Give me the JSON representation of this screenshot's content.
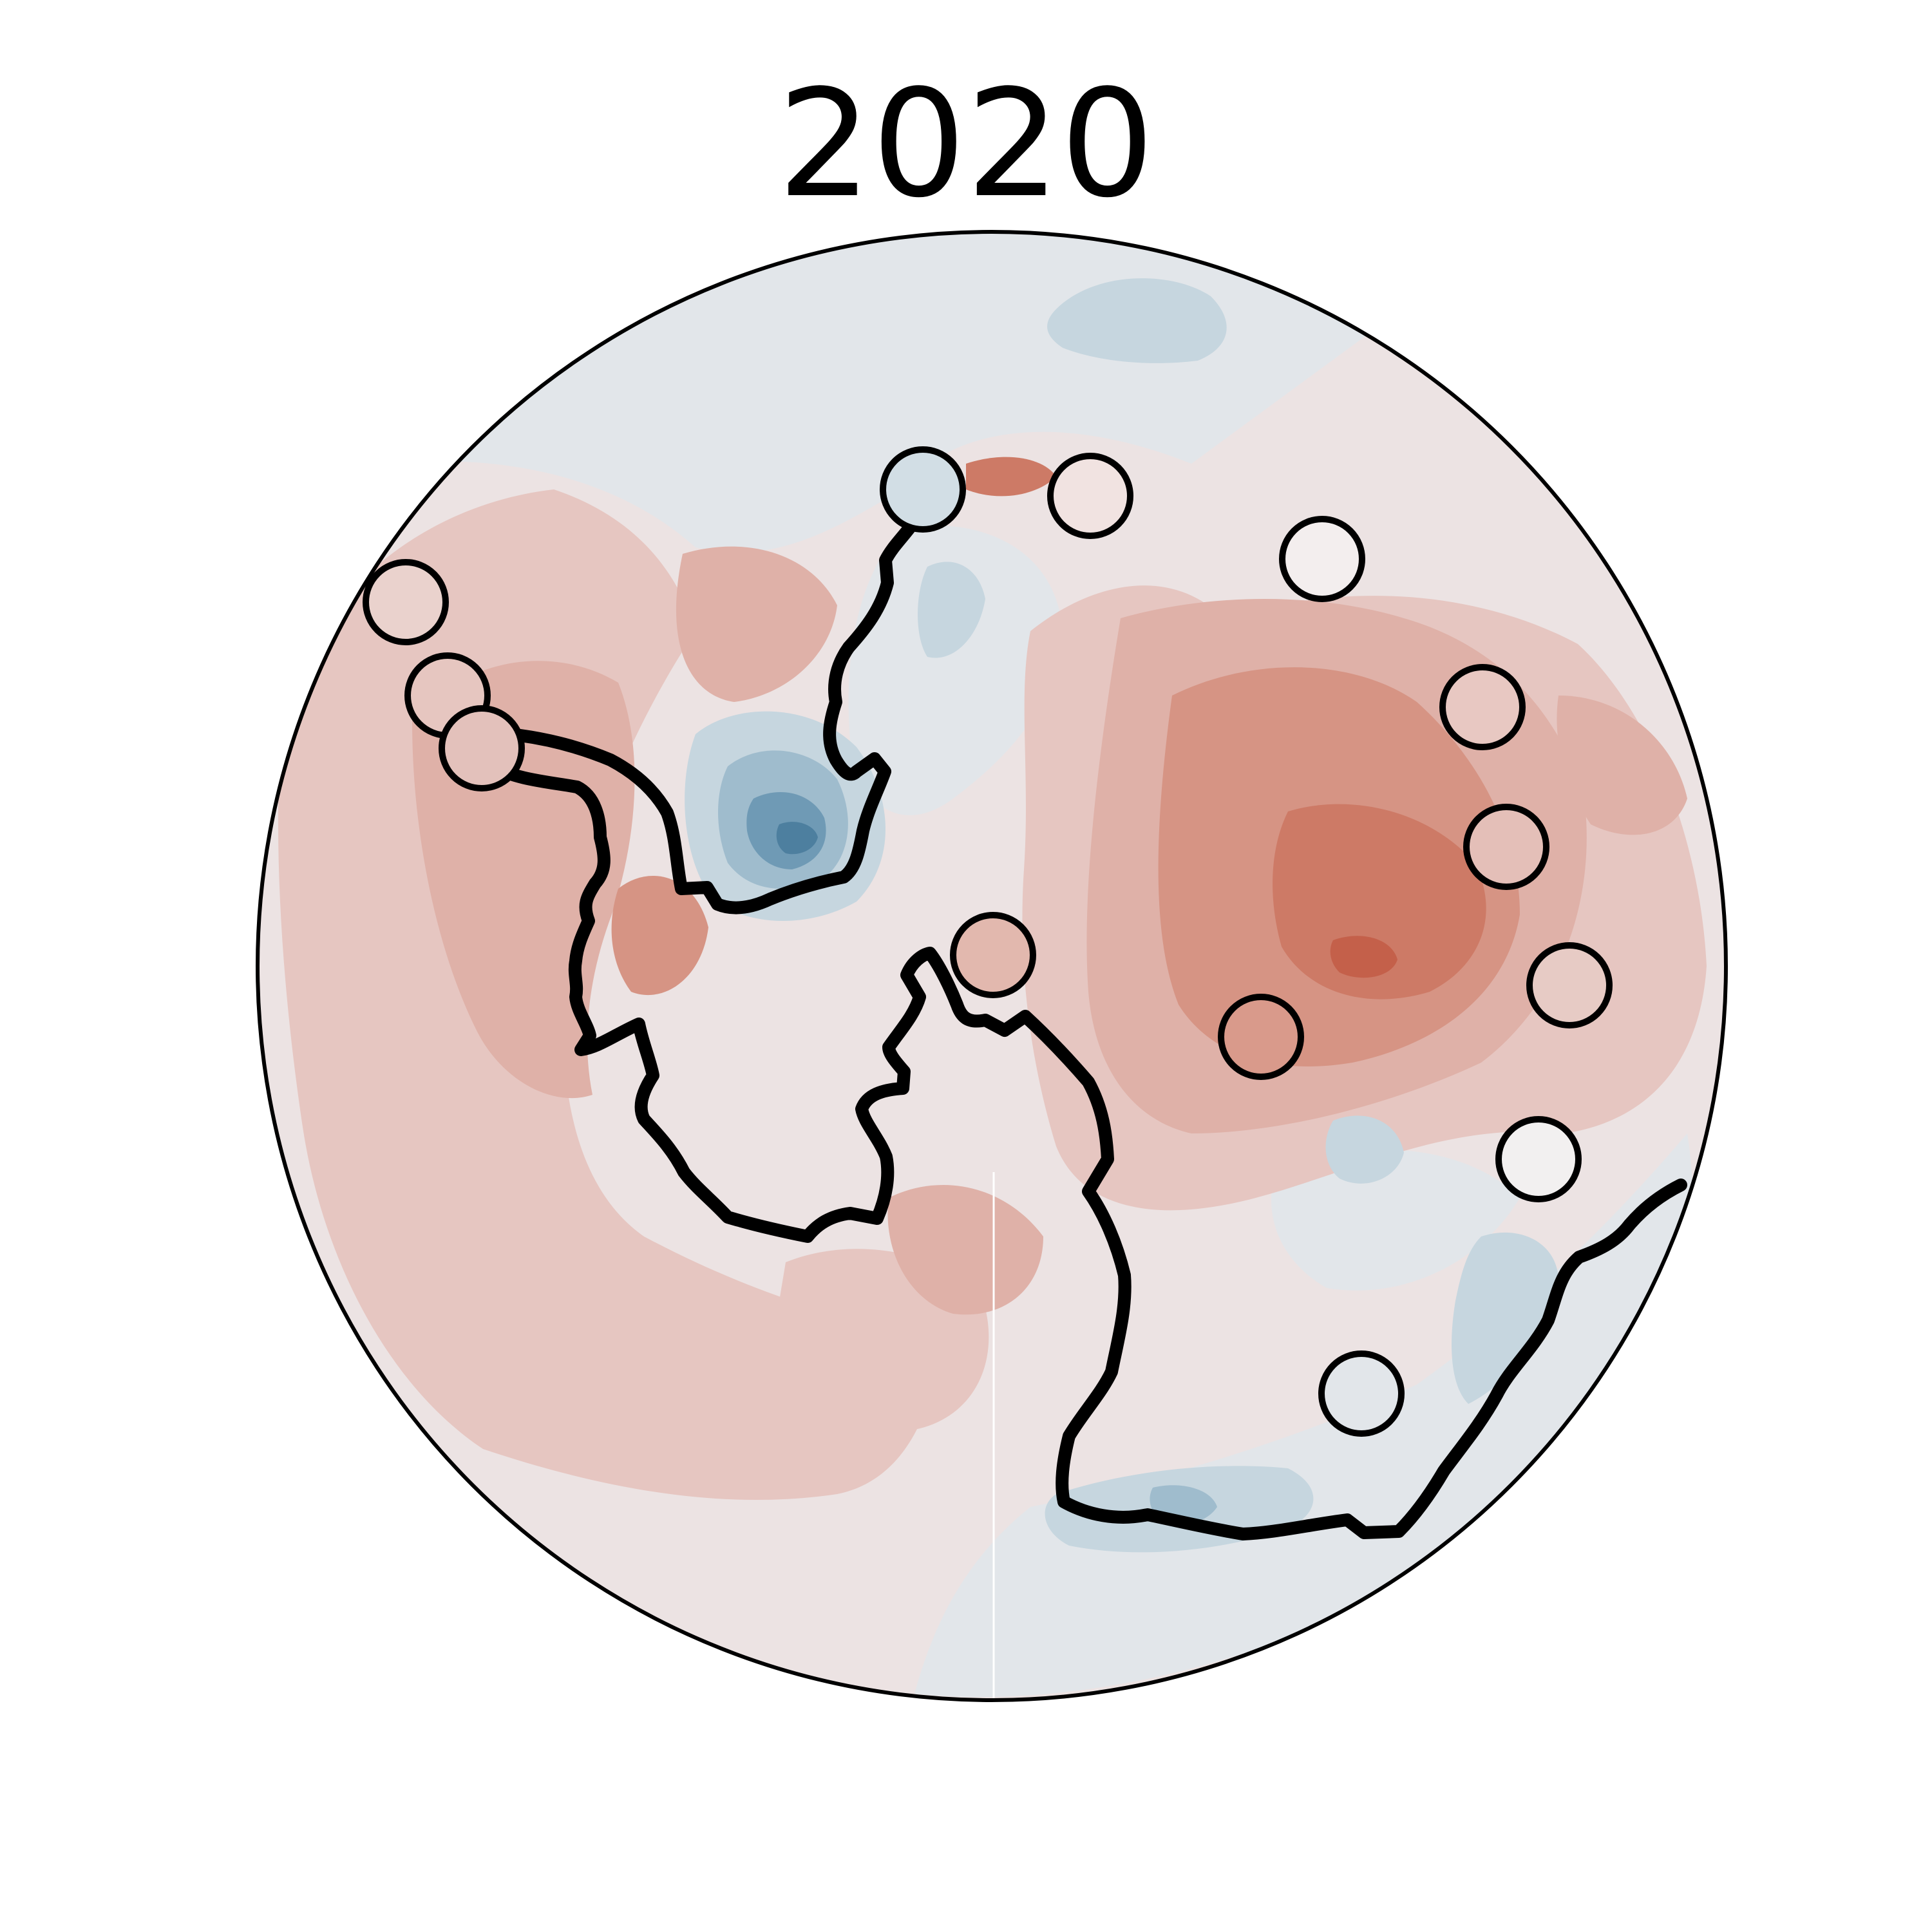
{
  "title": "2020",
  "colors": {
    "ocean_base": "#ece3e3",
    "neutral_blue": "#e2e6ea",
    "light_blue": "#c6d6df",
    "mid_blue": "#9fbccd",
    "deep_blue": "#6f9ab5",
    "darkest_blue": "#4d7f9f",
    "faint_red": "#efe1df",
    "light_red": "#e6c6c1",
    "mid_red": "#dfb1a8",
    "red": "#d69484",
    "strong_red": "#cd7a66",
    "deep_red": "#c4604a",
    "coastline": "#000000",
    "frame": "#000000"
  },
  "stations": [
    {
      "id": "s1",
      "fill": "#d2dee5"
    },
    {
      "id": "s2",
      "fill": "#f1e3e1"
    },
    {
      "id": "s3",
      "fill": "#f3eeee"
    },
    {
      "id": "s4",
      "fill": "#ead2cd"
    },
    {
      "id": "s5",
      "fill": "#e6c6c0"
    },
    {
      "id": "s6",
      "fill": "#e3c1bb"
    },
    {
      "id": "s7",
      "fill": "#e8c8c2"
    },
    {
      "id": "s8",
      "fill": "#e4bfb8"
    },
    {
      "id": "s9",
      "fill": "#e7cbc5"
    },
    {
      "id": "s10",
      "fill": "#f2f0f0"
    },
    {
      "id": "s11",
      "fill": "#e2e6ea"
    },
    {
      "id": "s12",
      "fill": "#e2b8ae"
    },
    {
      "id": "s13",
      "fill": "#d99a8b"
    }
  ]
}
